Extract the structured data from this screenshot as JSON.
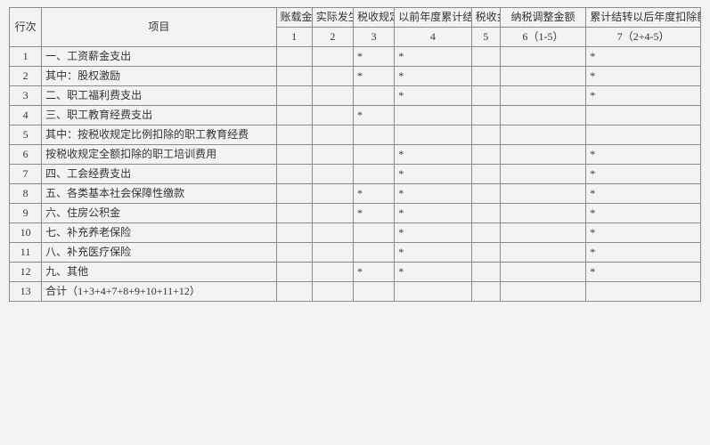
{
  "colors": {
    "border": "#8b8b8b",
    "background": "#f3f3f3",
    "text": "#333333"
  },
  "header": {
    "row_no": "行次",
    "item": "项目",
    "book_amount": "账载金额",
    "actual_amount": "实际发生额",
    "tax_deduct_rate": "税收规定扣除率",
    "prior_year_carry": "以前年度累计结转扣除额",
    "tax_amount": "税收金额",
    "tax_adjust": "纳税调整金额",
    "carry_forward": "累计结转以后年度扣除额",
    "sub": {
      "c1": "1",
      "c2": "2",
      "c3": "3",
      "c4": "4",
      "c5": "5",
      "c6": "6（1-5）",
      "c7": "7（2+4-5）"
    }
  },
  "rows": [
    {
      "no": "1",
      "item": "一、工资薪金支出",
      "c1": "",
      "c2": "",
      "c3": "*",
      "c4": "*",
      "c5": "",
      "c6": "",
      "c7": "*"
    },
    {
      "no": "2",
      "item": "其中：股权激励",
      "c1": "",
      "c2": "",
      "c3": "*",
      "c4": "*",
      "c5": "",
      "c6": "",
      "c7": "*"
    },
    {
      "no": "3",
      "item": "二、职工福利费支出",
      "c1": "",
      "c2": "",
      "c3": "",
      "c4": "*",
      "c5": "",
      "c6": "",
      "c7": "*"
    },
    {
      "no": "4",
      "item": "三、职工教育经费支出",
      "c1": "",
      "c2": "",
      "c3": "*",
      "c4": "",
      "c5": "",
      "c6": "",
      "c7": ""
    },
    {
      "no": "5",
      "item": "其中：按税收规定比例扣除的职工教育经费",
      "c1": "",
      "c2": "",
      "c3": "",
      "c4": "",
      "c5": "",
      "c6": "",
      "c7": ""
    },
    {
      "no": "6",
      "item": "按税收规定全额扣除的职工培训费用",
      "c1": "",
      "c2": "",
      "c3": "",
      "c4": "*",
      "c5": "",
      "c6": "",
      "c7": "*"
    },
    {
      "no": "7",
      "item": "四、工会经费支出",
      "c1": "",
      "c2": "",
      "c3": "",
      "c4": "*",
      "c5": "",
      "c6": "",
      "c7": "*"
    },
    {
      "no": "8",
      "item": "五、各类基本社会保障性缴款",
      "c1": "",
      "c2": "",
      "c3": "*",
      "c4": "*",
      "c5": "",
      "c6": "",
      "c7": "*"
    },
    {
      "no": "9",
      "item": "六、住房公积金",
      "c1": "",
      "c2": "",
      "c3": "*",
      "c4": "*",
      "c5": "",
      "c6": "",
      "c7": "*"
    },
    {
      "no": "10",
      "item": "七、补充养老保险",
      "c1": "",
      "c2": "",
      "c3": "",
      "c4": "*",
      "c5": "",
      "c6": "",
      "c7": "*"
    },
    {
      "no": "11",
      "item": "八、补充医疗保险",
      "c1": "",
      "c2": "",
      "c3": "",
      "c4": "*",
      "c5": "",
      "c6": "",
      "c7": "*"
    },
    {
      "no": "12",
      "item": "九、其他",
      "c1": "",
      "c2": "",
      "c3": "*",
      "c4": "*",
      "c5": "",
      "c6": "",
      "c7": "*"
    },
    {
      "no": "13",
      "item": "合计（1+3+4+7+8+9+10+11+12）",
      "c1": "",
      "c2": "",
      "c3": "",
      "c4": "",
      "c5": "",
      "c6": "",
      "c7": ""
    }
  ]
}
